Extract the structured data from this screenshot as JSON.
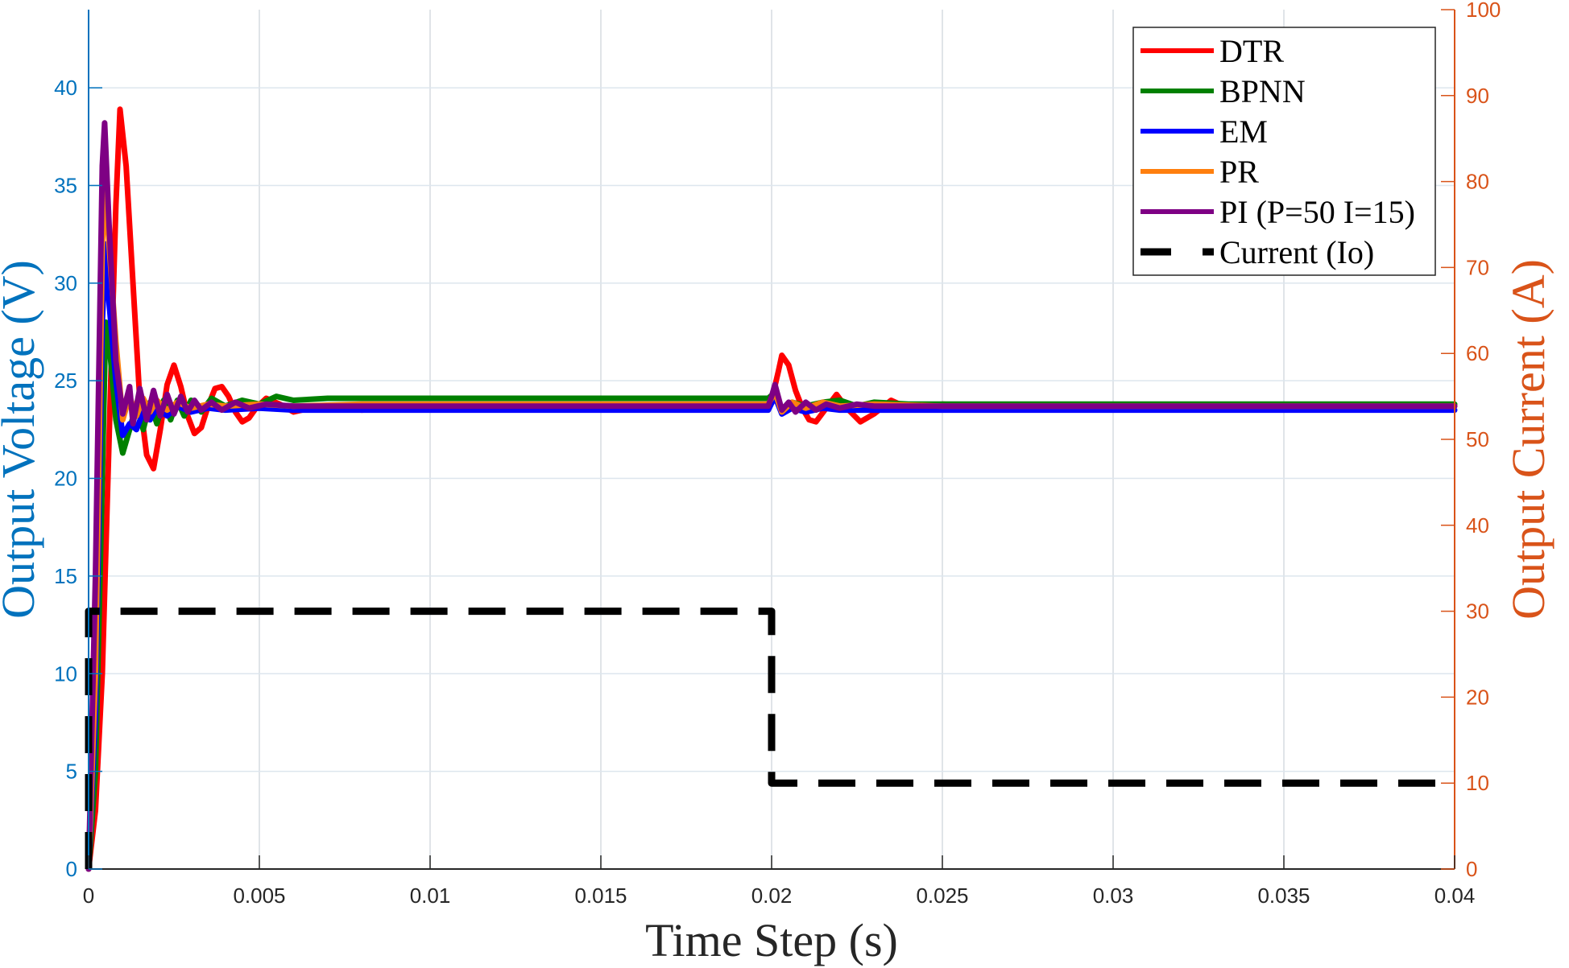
{
  "chart_data": {
    "type": "line",
    "title": "",
    "xlabel": "Time Step (s)",
    "ylabel_left": "Output Voltage (V)",
    "ylabel_right": "Output Current (A)",
    "xlim": [
      0,
      0.04
    ],
    "ylim_left": [
      0,
      44
    ],
    "ylim_right": [
      0,
      100
    ],
    "x_ticks": [
      0,
      0.005,
      0.01,
      0.015,
      0.02,
      0.025,
      0.03,
      0.035,
      0.04
    ],
    "x_tick_labels": [
      "0",
      "0.005",
      "0.01",
      "0.015",
      "0.02",
      "0.025",
      "0.03",
      "0.035",
      "0.04"
    ],
    "y_left_ticks": [
      0,
      5,
      10,
      15,
      20,
      25,
      30,
      35,
      40
    ],
    "y_left_tick_labels": [
      "0",
      "5",
      "10",
      "15",
      "20",
      "25",
      "30",
      "35",
      "40"
    ],
    "y_right_ticks": [
      0,
      10,
      20,
      30,
      40,
      50,
      60,
      70,
      80,
      90,
      100
    ],
    "y_right_tick_labels": [
      "0",
      "10",
      "20",
      "30",
      "40",
      "50",
      "60",
      "70",
      "80",
      "90",
      "100"
    ],
    "grid": true,
    "legend_position": "upper right",
    "colors": {
      "left_axis": "#0072BD",
      "right_axis": "#D95319",
      "grid": "#dde6ee"
    },
    "series": [
      {
        "name": "DTR",
        "color": "#ff0000",
        "axis": "left",
        "style": "solid",
        "x": [
          0,
          0.0002,
          0.0004,
          0.0006,
          0.0008,
          0.00092,
          0.0011,
          0.0013,
          0.0015,
          0.0017,
          0.0019,
          0.0021,
          0.0023,
          0.0025,
          0.0027,
          0.0029,
          0.0031,
          0.0033,
          0.0035,
          0.0037,
          0.0039,
          0.0041,
          0.0043,
          0.0045,
          0.0047,
          0.0049,
          0.0052,
          0.0056,
          0.006,
          0.0065,
          0.007,
          0.008,
          0.009,
          0.01,
          0.015,
          0.0199,
          0.02,
          0.0202,
          0.0203,
          0.0205,
          0.0207,
          0.0209,
          0.0211,
          0.0213,
          0.0216,
          0.0219,
          0.0222,
          0.0226,
          0.023,
          0.0235,
          0.024,
          0.025,
          0.026,
          0.03,
          0.035,
          0.04
        ],
        "y": [
          0,
          3,
          10,
          22,
          34,
          38.9,
          36,
          30,
          24,
          21.2,
          20.5,
          22.5,
          24.8,
          25.8,
          24.7,
          23.2,
          22.3,
          22.6,
          23.7,
          24.6,
          24.7,
          24.2,
          23.4,
          22.9,
          23.1,
          23.6,
          24.1,
          23.8,
          23.4,
          23.6,
          23.7,
          23.5,
          23.6,
          23.6,
          23.6,
          23.6,
          24.0,
          25.5,
          26.3,
          25.8,
          24.5,
          23.6,
          23.0,
          22.9,
          23.6,
          24.3,
          23.6,
          22.9,
          23.3,
          24.0,
          23.6,
          23.8,
          23.7,
          23.7,
          23.7,
          23.7
        ]
      },
      {
        "name": "BPNN",
        "color": "#008000",
        "axis": "left",
        "style": "solid",
        "x": [
          0,
          0.0002,
          0.0004,
          0.0005,
          0.0006,
          0.0008,
          0.001,
          0.0012,
          0.0014,
          0.0016,
          0.0018,
          0.002,
          0.0022,
          0.0024,
          0.0026,
          0.0028,
          0.003,
          0.0033,
          0.0036,
          0.004,
          0.0045,
          0.005,
          0.0055,
          0.006,
          0.007,
          0.008,
          0.01,
          0.015,
          0.0199,
          0.0201,
          0.0203,
          0.0206,
          0.021,
          0.0215,
          0.022,
          0.0225,
          0.023,
          0.024,
          0.025,
          0.03,
          0.035,
          0.04
        ],
        "y": [
          0,
          5,
          20,
          28,
          27,
          23,
          21.3,
          22.5,
          23.8,
          22.5,
          23.9,
          22.8,
          24.0,
          23.0,
          24.0,
          23.2,
          24.0,
          23.4,
          24.1,
          23.7,
          24.0,
          23.8,
          24.2,
          24.0,
          24.1,
          24.1,
          24.1,
          24.1,
          24.1,
          24.4,
          23.4,
          23.9,
          23.7,
          23.9,
          24.0,
          23.7,
          23.9,
          23.8,
          23.8,
          23.8,
          23.8,
          23.8
        ]
      },
      {
        "name": "EM",
        "color": "#0000ff",
        "axis": "left",
        "style": "solid",
        "x": [
          0,
          0.0002,
          0.0004,
          0.0005,
          0.0006,
          0.0008,
          0.001,
          0.0012,
          0.0014,
          0.0016,
          0.0018,
          0.002,
          0.0023,
          0.0026,
          0.003,
          0.0035,
          0.004,
          0.005,
          0.006,
          0.008,
          0.01,
          0.015,
          0.0199,
          0.0201,
          0.0203,
          0.0206,
          0.021,
          0.0215,
          0.022,
          0.023,
          0.025,
          0.03,
          0.035,
          0.04
        ],
        "y": [
          0,
          8,
          28,
          32,
          29,
          25,
          22.2,
          22.8,
          22.5,
          23.4,
          23.0,
          23.6,
          23.2,
          23.7,
          23.4,
          23.6,
          23.5,
          23.6,
          23.5,
          23.5,
          23.5,
          23.5,
          23.5,
          24.2,
          23.3,
          23.6,
          23.4,
          23.6,
          23.5,
          23.5,
          23.5,
          23.5,
          23.5,
          23.5
        ]
      },
      {
        "name": "PR",
        "color": "#ff7f0e",
        "axis": "left",
        "style": "solid",
        "x": [
          0,
          0.0002,
          0.0004,
          0.0005,
          0.0006,
          0.0008,
          0.001,
          0.0012,
          0.0014,
          0.0016,
          0.0018,
          0.002,
          0.0023,
          0.0026,
          0.003,
          0.0035,
          0.004,
          0.005,
          0.006,
          0.008,
          0.01,
          0.015,
          0.0199,
          0.0201,
          0.0203,
          0.0206,
          0.021,
          0.0215,
          0.022,
          0.023,
          0.025,
          0.03,
          0.035,
          0.04
        ],
        "y": [
          0,
          10,
          32,
          35,
          32,
          27,
          23,
          24.2,
          23.2,
          24.1,
          23.4,
          24.0,
          23.5,
          23.9,
          23.6,
          23.8,
          23.7,
          23.8,
          23.7,
          23.8,
          23.8,
          23.8,
          23.8,
          24.4,
          23.4,
          23.9,
          23.6,
          23.9,
          23.7,
          23.8,
          23.7,
          23.7,
          23.7,
          23.7
        ]
      },
      {
        "name": "PI (P=50 I=15)",
        "color": "#7e0084",
        "axis": "left",
        "style": "solid",
        "x": [
          0,
          0.0002,
          0.0004,
          0.00047,
          0.0006,
          0.0008,
          0.001,
          0.0012,
          0.0013,
          0.0015,
          0.0017,
          0.0019,
          0.0021,
          0.0023,
          0.0025,
          0.0027,
          0.0029,
          0.0031,
          0.0033,
          0.0036,
          0.0039,
          0.0043,
          0.0047,
          0.0052,
          0.006,
          0.007,
          0.008,
          0.01,
          0.015,
          0.0199,
          0.02,
          0.0201,
          0.0203,
          0.0205,
          0.0207,
          0.021,
          0.0213,
          0.0216,
          0.022,
          0.0225,
          0.023,
          0.024,
          0.025,
          0.03,
          0.035,
          0.04
        ],
        "y": [
          0,
          15,
          36,
          38.2,
          33,
          26,
          23.3,
          24.7,
          22.8,
          24.6,
          23.0,
          24.5,
          23.2,
          24.3,
          23.3,
          24.2,
          23.4,
          24.0,
          23.5,
          23.9,
          23.5,
          23.9,
          23.6,
          23.8,
          23.7,
          23.7,
          23.7,
          23.7,
          23.7,
          23.7,
          24.2,
          24.8,
          23.5,
          23.9,
          23.4,
          23.9,
          23.5,
          23.8,
          23.6,
          23.8,
          23.7,
          23.7,
          23.7,
          23.7,
          23.7,
          23.7
        ]
      },
      {
        "name": "Current (Io)",
        "color": "#000000",
        "axis": "right",
        "style": "dashed",
        "x": [
          0,
          0,
          0.02,
          0.02,
          0.04
        ],
        "y": [
          0,
          30,
          30,
          10,
          10
        ]
      }
    ]
  },
  "legend": {
    "items": [
      {
        "label": "DTR",
        "color": "#ff0000",
        "style": "solid"
      },
      {
        "label": "BPNN",
        "color": "#008000",
        "style": "solid"
      },
      {
        "label": "EM",
        "color": "#0000ff",
        "style": "solid"
      },
      {
        "label": "PR",
        "color": "#ff7f0e",
        "style": "solid"
      },
      {
        "label": "PI (P=50 I=15)",
        "color": "#7e0084",
        "style": "solid"
      },
      {
        "label": "Current (Io)",
        "color": "#000000",
        "style": "dashed"
      }
    ]
  }
}
